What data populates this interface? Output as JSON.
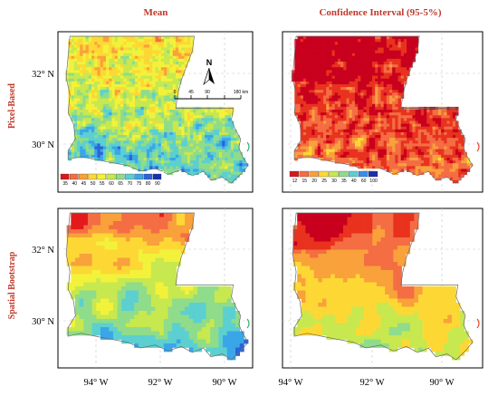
{
  "titles": {
    "col_left": "Mean",
    "col_right": "Confidence Interval (95-5%)",
    "row_top": "Pixel-Based",
    "row_bottom": "Spatial Bootstrap"
  },
  "axes": {
    "lat_labels": [
      "32° N",
      "30° N",
      "32° N",
      "30° N"
    ],
    "lon_labels": [
      "94° W",
      "92° W",
      "90° W",
      "94° W",
      "92° W",
      "90° W"
    ]
  },
  "scalebar": {
    "ticks": [
      "0",
      "45",
      "90",
      "",
      "180 km"
    ]
  },
  "north_arrow": {
    "label": "N"
  },
  "legends": {
    "mean": {
      "labels": [
        "35",
        "40",
        "45",
        "50",
        "55",
        "60",
        "65",
        "70",
        "75",
        "80",
        "90"
      ],
      "colors": [
        "#d7191c",
        "#f46d43",
        "#f9a13a",
        "#fdd835",
        "#f2f23a",
        "#c7e84f",
        "#8fdc8a",
        "#5ccfd0",
        "#3aa6e8",
        "#2c64d8",
        "#1a2fb0"
      ]
    },
    "ci": {
      "labels": [
        "12",
        "15",
        "20",
        "25",
        "30",
        "35",
        "40",
        "60",
        "100"
      ],
      "colors": [
        "#d7191c",
        "#f46d43",
        "#f9a13a",
        "#fdd835",
        "#c7e84f",
        "#8fdc8a",
        "#5ccfd0",
        "#3a8ee8",
        "#1a2fb0"
      ]
    }
  },
  "colors": {
    "title_red": "#c0392b"
  }
}
